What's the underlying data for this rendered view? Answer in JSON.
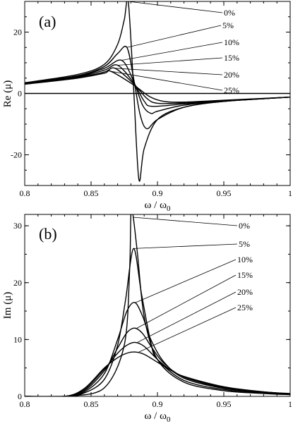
{
  "chart_data": [
    {
      "type": "line",
      "title": "",
      "panel_label": "(a)",
      "xlabel": "ω / ω",
      "xlabel_sub": "0",
      "ylabel": "Re (μ)",
      "xlim": [
        0.8,
        1.0
      ],
      "ylim": [
        -30,
        30
      ],
      "xticks": [
        0.8,
        0.85,
        0.9,
        0.95,
        1.0
      ],
      "xtick_labels": [
        "0.8",
        "0.85",
        "0.9",
        "0.95",
        "1"
      ],
      "yticks": [
        -20,
        0,
        20
      ],
      "ytick_labels": [
        "-20",
        "0",
        "20"
      ],
      "zero_line": true,
      "grid": false,
      "series": [
        {
          "name": "0%",
          "x": [
            0.8,
            0.84,
            0.86,
            0.87,
            0.875,
            0.878,
            0.882,
            0.886,
            0.89,
            0.9,
            0.92,
            0.95,
            1.0
          ],
          "y": [
            3.5,
            6.2,
            9.5,
            16.0,
            24.0,
            30.0,
            2.0,
            -28.0,
            -18.0,
            -8.5,
            -4.5,
            -2.6,
            -1.2
          ]
        },
        {
          "name": "5%",
          "x": [
            0.8,
            0.84,
            0.86,
            0.87,
            0.877,
            0.882,
            0.887,
            0.892,
            0.9,
            0.92,
            0.95,
            1.0
          ],
          "y": [
            3.4,
            5.8,
            8.8,
            13.0,
            15.0,
            5.0,
            -7.0,
            -11.5,
            -8.5,
            -4.5,
            -2.6,
            -1.2
          ]
        },
        {
          "name": "10%",
          "x": [
            0.8,
            0.84,
            0.86,
            0.873,
            0.882,
            0.889,
            0.895,
            0.9,
            0.92,
            0.95,
            1.0
          ],
          "y": [
            3.3,
            5.6,
            8.2,
            10.8,
            4.0,
            -4.0,
            -6.5,
            -5.8,
            -3.8,
            -2.5,
            -1.2
          ]
        },
        {
          "name": "15%",
          "x": [
            0.8,
            0.84,
            0.86,
            0.87,
            0.882,
            0.89,
            0.896,
            0.92,
            0.95,
            1.0
          ],
          "y": [
            3.2,
            5.4,
            7.6,
            9.2,
            3.5,
            -2.5,
            -4.2,
            -3.4,
            -2.4,
            -1.2
          ]
        },
        {
          "name": "20%",
          "x": [
            0.8,
            0.84,
            0.86,
            0.868,
            0.882,
            0.892,
            0.9,
            0.92,
            0.95,
            1.0
          ],
          "y": [
            3.1,
            5.2,
            7.0,
            8.2,
            3.2,
            -1.6,
            -3.2,
            -3.1,
            -2.3,
            -1.2
          ]
        },
        {
          "name": "25%",
          "x": [
            0.8,
            0.84,
            0.86,
            0.865,
            0.882,
            0.894,
            0.905,
            0.92,
            0.95,
            1.0
          ],
          "y": [
            3.0,
            5.0,
            6.6,
            7.2,
            2.8,
            -1.0,
            -2.6,
            -2.8,
            -2.2,
            -1.2
          ]
        }
      ],
      "annotations": [
        "0%",
        "5%",
        "10%",
        "15%",
        "20%",
        "25%"
      ]
    },
    {
      "type": "line",
      "title": "",
      "panel_label": "(b)",
      "xlabel": "ω / ω",
      "xlabel_sub": "0",
      "ylabel": "Im (μ)",
      "xlim": [
        0.8,
        1.0
      ],
      "ylim": [
        0,
        32
      ],
      "xticks": [
        0.8,
        0.85,
        0.9,
        0.95,
        1.0
      ],
      "xtick_labels": [
        "0.8",
        "0.85",
        "0.9",
        "0.95",
        "1"
      ],
      "yticks": [
        0,
        10,
        20,
        30
      ],
      "ytick_labels": [
        "0",
        "10",
        "20",
        "30"
      ],
      "grid": false,
      "series": [
        {
          "name": "0%",
          "x": [
            0.8,
            0.83,
            0.835,
            0.86,
            0.875,
            0.879,
            0.88,
            0.8815,
            0.885,
            0.89,
            0.9,
            0.92,
            0.95,
            0.98,
            1.0
          ],
          "y": [
            0,
            0,
            0.05,
            1.5,
            9.0,
            22.0,
            32.0,
            32.0,
            25.0,
            14.0,
            6.5,
            2.5,
            1.0,
            0.5,
            0.3
          ]
        },
        {
          "name": "5%",
          "x": [
            0.8,
            0.83,
            0.845,
            0.86,
            0.87,
            0.876,
            0.882,
            0.888,
            0.895,
            0.9,
            0.92,
            0.95,
            0.98,
            1.0
          ],
          "y": [
            0,
            0,
            0.6,
            3.0,
            9.0,
            17.0,
            26.0,
            18.0,
            9.5,
            6.5,
            2.8,
            1.2,
            0.6,
            0.35
          ]
        },
        {
          "name": "10%",
          "x": [
            0.8,
            0.83,
            0.845,
            0.86,
            0.87,
            0.877,
            0.883,
            0.889,
            0.895,
            0.905,
            0.92,
            0.95,
            0.98,
            1.0
          ],
          "y": [
            0,
            0,
            0.8,
            4.0,
            10.0,
            15.0,
            16.5,
            14.0,
            10.0,
            6.0,
            3.2,
            1.4,
            0.7,
            0.4
          ]
        },
        {
          "name": "15%",
          "x": [
            0.8,
            0.83,
            0.845,
            0.86,
            0.87,
            0.877,
            0.883,
            0.889,
            0.896,
            0.905,
            0.92,
            0.95,
            0.98,
            1.0
          ],
          "y": [
            0,
            0,
            1.0,
            4.5,
            8.5,
            11.2,
            12.0,
            11.0,
            8.5,
            5.8,
            3.4,
            1.5,
            0.7,
            0.4
          ]
        },
        {
          "name": "20%",
          "x": [
            0.8,
            0.83,
            0.845,
            0.86,
            0.87,
            0.877,
            0.883,
            0.89,
            0.9,
            0.91,
            0.92,
            0.95,
            0.98,
            1.0
          ],
          "y": [
            0,
            0,
            1.2,
            4.8,
            7.6,
            9.0,
            9.5,
            8.8,
            6.5,
            4.6,
            3.5,
            1.6,
            0.8,
            0.45
          ]
        },
        {
          "name": "25%",
          "x": [
            0.8,
            0.83,
            0.845,
            0.86,
            0.87,
            0.877,
            0.883,
            0.89,
            0.9,
            0.91,
            0.92,
            0.95,
            0.98,
            1.0
          ],
          "y": [
            0,
            0,
            1.4,
            5.0,
            6.8,
            7.6,
            7.8,
            7.4,
            6.0,
            4.6,
            3.5,
            1.7,
            0.8,
            0.5
          ]
        }
      ],
      "annotations": [
        "0%",
        "5%",
        "10%",
        "15%",
        "20%",
        "25%"
      ]
    }
  ]
}
